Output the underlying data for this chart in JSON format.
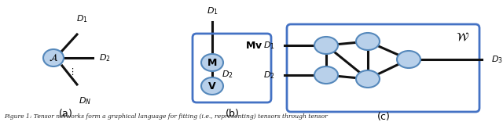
{
  "bg_color": "#ffffff",
  "node_color": "#b8d0ea",
  "node_edge_color": "#5588bb",
  "line_color": "#111111",
  "box_color": "#4472c4",
  "fig_caption": "Figure 1: Tensor networks form a graphical language for fitting (i.e., representing) tensors through tensor"
}
